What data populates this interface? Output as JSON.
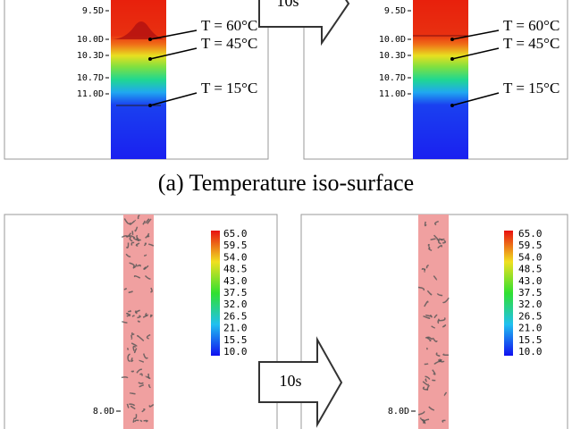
{
  "top": {
    "left": {
      "ticks": [
        "9.5D",
        "10.0D",
        "10.3D",
        "10.7D",
        "11.0D"
      ],
      "annotations": [
        "T = 60°C",
        "T = 45°C",
        "T = 15°C"
      ]
    },
    "right": {
      "ticks": [
        "9.5D",
        "10.0D",
        "10.3D",
        "10.7D",
        "11.0D"
      ],
      "annotations": [
        "T = 60°C",
        "T = 45°C",
        "T = 15°C"
      ]
    },
    "arrow": "10s",
    "caption": "(a) Temperature iso-surface"
  },
  "bottom": {
    "left": {
      "colorbar": [
        "65.0",
        "59.5",
        "54.0",
        "48.5",
        "43.0",
        "37.5",
        "32.0",
        "26.5",
        "21.0",
        "15.5",
        "10.0"
      ],
      "tick": "8.0D"
    },
    "right": {
      "colorbar": [
        "65.0",
        "59.5",
        "54.0",
        "48.5",
        "43.0",
        "37.5",
        "32.0",
        "26.5",
        "21.0",
        "15.5",
        "10.0"
      ],
      "tick": "8.0D"
    },
    "arrow": "10s"
  }
}
